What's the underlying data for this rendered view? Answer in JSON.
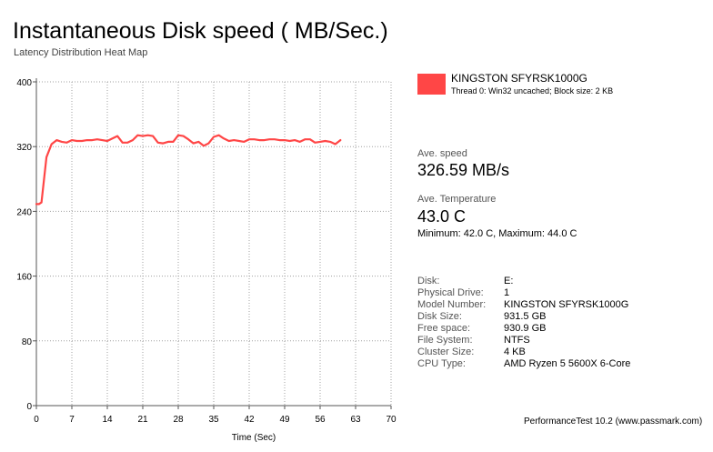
{
  "header": {
    "title": "Instantaneous Disk speed ( MB/Sec.)",
    "subtitle": "Latency Distribution Heat Map"
  },
  "legend": {
    "name": "KINGSTON SFYRSK1000G",
    "description": "Thread 0: Win32 uncached; Block size: 2 KB",
    "color": "#ff4646"
  },
  "stats": {
    "avg_speed_label": "Ave. speed",
    "avg_speed_value": "326.59 MB/s",
    "avg_temp_label": "Ave. Temperature",
    "avg_temp_value": "43.0 C",
    "minmax": "Minimum: 42.0 C, Maximum: 44.0 C"
  },
  "info": [
    {
      "key": "Disk:",
      "value": "E:"
    },
    {
      "key": "Physical Drive:",
      "value": "1"
    },
    {
      "key": "Model Number:",
      "value": "KINGSTON SFYRSK1000G"
    },
    {
      "key": "Disk Size:",
      "value": "931.5 GB"
    },
    {
      "key": "Free space:",
      "value": "930.9 GB"
    },
    {
      "key": "File System:",
      "value": "NTFS"
    },
    {
      "key": "Cluster Size:",
      "value": "4 KB"
    },
    {
      "key": "CPU Type:",
      "value": "AMD Ryzen 5 5600X 6-Core"
    }
  ],
  "footer": "PerformanceTest 10.2 (www.passmark.com)",
  "chart_data": {
    "type": "line",
    "xlabel": "Time (Sec)",
    "ylabel": "",
    "xlim": [
      0,
      70
    ],
    "ylim": [
      0,
      400
    ],
    "xticks": [
      0,
      7,
      14,
      21,
      28,
      35,
      42,
      49,
      56,
      63,
      70
    ],
    "yticks": [
      0,
      80,
      160,
      240,
      320,
      400
    ],
    "grid": true,
    "legend_position": "right",
    "series": [
      {
        "name": "KINGSTON SFYRSK1000G",
        "color": "#ff4646",
        "x": [
          0,
          0.5,
          1,
          2,
          3,
          4,
          5,
          6,
          7,
          8,
          9,
          10,
          11,
          12,
          13,
          14,
          15,
          16,
          17,
          18,
          19,
          20,
          21,
          22,
          23,
          24,
          25,
          26,
          27,
          28,
          29,
          30,
          31,
          32,
          33,
          34,
          35,
          36,
          37,
          38,
          39,
          40,
          41,
          42,
          43,
          44,
          45,
          46,
          47,
          48,
          49,
          50,
          51,
          52,
          53,
          54,
          55,
          56,
          57,
          58,
          59,
          60
        ],
        "y": [
          249,
          249,
          251,
          307,
          323,
          328,
          326,
          325,
          328,
          327,
          327,
          328,
          328,
          329,
          328,
          327,
          330,
          333,
          325,
          325,
          328,
          334,
          333,
          334,
          333,
          325,
          324,
          326,
          326,
          334,
          333,
          329,
          324,
          326,
          321,
          324,
          332,
          334,
          330,
          327,
          328,
          327,
          326,
          329,
          329,
          328,
          328,
          329,
          329,
          328,
          328,
          327,
          328,
          326,
          329,
          329,
          325,
          326,
          327,
          326,
          323,
          328
        ]
      }
    ]
  }
}
